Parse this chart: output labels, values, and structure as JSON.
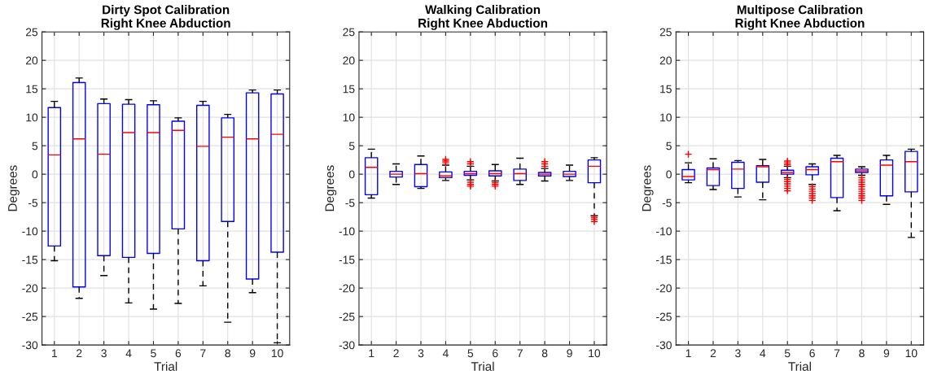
{
  "chart_data": [
    {
      "type": "box",
      "title": "Dirty Spot Calibration\nRight Knee Abduction",
      "xlabel": "Trial",
      "ylabel": "Degrees",
      "categories": [
        "1",
        "2",
        "3",
        "4",
        "5",
        "6",
        "7",
        "8",
        "9",
        "10"
      ],
      "ylim": [
        -30,
        25
      ],
      "yticks": [
        -30,
        -25,
        -20,
        -15,
        -10,
        -5,
        0,
        5,
        10,
        15,
        20,
        25
      ],
      "grid": true,
      "series": [
        {
          "color": "#0000ff",
          "boxes": [
            {
              "low": -15.2,
              "q1": -12.6,
              "median": 3.4,
              "q3": 11.7,
              "high": 12.8
            },
            {
              "low": -21.8,
              "q1": -19.8,
              "median": 6.2,
              "q3": 16.1,
              "high": 16.9
            },
            {
              "low": -17.8,
              "q1": -14.3,
              "median": 3.5,
              "q3": 12.4,
              "high": 13.2
            },
            {
              "low": -22.6,
              "q1": -14.6,
              "median": 7.3,
              "q3": 12.3,
              "high": 13.1
            },
            {
              "low": -23.7,
              "q1": -13.9,
              "median": 7.3,
              "q3": 12.2,
              "high": 12.9
            },
            {
              "low": -22.7,
              "q1": -9.6,
              "median": 7.7,
              "q3": 9.3,
              "high": 9.9
            },
            {
              "low": -19.6,
              "q1": -15.2,
              "median": 4.9,
              "q3": 12.1,
              "high": 12.8
            },
            {
              "low": -26.0,
              "q1": -8.3,
              "median": 6.5,
              "q3": 9.9,
              "high": 10.5
            },
            {
              "low": -20.8,
              "q1": -18.4,
              "median": 6.2,
              "q3": 14.3,
              "high": 14.8
            },
            {
              "low": -29.6,
              "q1": -13.7,
              "median": 7.0,
              "q3": 14.1,
              "high": 14.8
            }
          ]
        }
      ]
    },
    {
      "type": "box",
      "title": "Walking Calibration\nRight Knee Abduction",
      "xlabel": "Trial",
      "ylabel": "Degrees",
      "categories": [
        "1",
        "2",
        "3",
        "4",
        "5",
        "6",
        "7",
        "8",
        "9",
        "10"
      ],
      "ylim": [
        -30,
        25
      ],
      "yticks": [
        -30,
        -25,
        -20,
        -15,
        -10,
        -5,
        0,
        5,
        10,
        15,
        20,
        25
      ],
      "grid": true,
      "series": [
        {
          "color": "#0000ff",
          "boxes": [
            {
              "low": -4.2,
              "q1": -3.6,
              "median": 1.2,
              "q3": 2.9,
              "high": 4.4
            },
            {
              "low": -1.8,
              "q1": -0.5,
              "median": 0.0,
              "q3": 0.5,
              "high": 1.8
            },
            {
              "low": -2.5,
              "q1": -2.2,
              "median": 0.1,
              "q3": 1.7,
              "high": 3.2
            },
            {
              "low": -1.1,
              "q1": -0.6,
              "median": -0.3,
              "q3": 0.4,
              "high": 1.6,
              "outliers": [
                2.0,
                2.3,
                2.6
              ]
            },
            {
              "low": -1.0,
              "q1": -0.2,
              "median": 0.1,
              "q3": 0.5,
              "high": 1.4,
              "outliers": [
                1.8,
                2.2,
                -1.4,
                -1.8,
                -2.1
              ]
            },
            {
              "low": -1.2,
              "q1": -0.3,
              "median": 0.1,
              "q3": 0.6,
              "high": 1.7,
              "outliers": [
                -1.5,
                -1.8,
                -2.1
              ]
            },
            {
              "low": -1.8,
              "q1": -1.1,
              "median": 0.1,
              "q3": 0.9,
              "high": 2.8
            },
            {
              "low": -1.2,
              "q1": -0.3,
              "median": 0.0,
              "q3": 0.3,
              "high": 1.0,
              "outliers": [
                1.4,
                1.8,
                2.2
              ]
            },
            {
              "low": -1.1,
              "q1": -0.4,
              "median": 0.0,
              "q3": 0.5,
              "high": 1.6
            },
            {
              "low": -7.3,
              "q1": -1.5,
              "median": 1.4,
              "q3": 2.5,
              "high": 2.9,
              "outliers": [
                -7.6,
                -7.9,
                -8.3
              ]
            }
          ]
        }
      ]
    },
    {
      "type": "box",
      "title": "Multipose Calibration\nRight Knee Abduction",
      "xlabel": "Trial",
      "ylabel": "Degrees",
      "categories": [
        "1",
        "2",
        "3",
        "4",
        "5",
        "6",
        "7",
        "8",
        "9",
        "10"
      ],
      "ylim": [
        -30,
        25
      ],
      "yticks": [
        -30,
        -25,
        -20,
        -15,
        -10,
        -5,
        0,
        5,
        10,
        15,
        20,
        25
      ],
      "grid": true,
      "series": [
        {
          "color": "#0000ff",
          "boxes": [
            {
              "low": -1.5,
              "q1": -1.0,
              "median": -0.4,
              "q3": 0.8,
              "high": 2.0,
              "outliers": [
                3.5
              ]
            },
            {
              "low": -2.7,
              "q1": -2.0,
              "median": 0.8,
              "q3": 1.1,
              "high": 2.7
            },
            {
              "low": -4.0,
              "q1": -2.5,
              "median": 0.9,
              "q3": 2.1,
              "high": 2.4
            },
            {
              "low": -4.5,
              "q1": -1.4,
              "median": 1.3,
              "q3": 1.5,
              "high": 2.6
            },
            {
              "low": -0.6,
              "q1": 0.0,
              "median": 0.3,
              "q3": 0.7,
              "high": 1.4,
              "outliers": [
                1.7,
                2.0,
                2.3,
                -0.9,
                -1.3,
                -1.7,
                -2.1,
                -2.5,
                -2.9
              ]
            },
            {
              "low": -1.8,
              "q1": -0.1,
              "median": 0.8,
              "q3": 1.3,
              "high": 1.8,
              "outliers": [
                -2.2,
                -2.6,
                -3.0,
                -3.4,
                -3.8,
                -4.2,
                -4.6
              ]
            },
            {
              "low": -6.4,
              "q1": -4.1,
              "median": 2.2,
              "q3": 2.8,
              "high": 3.3
            },
            {
              "low": -0.2,
              "q1": 0.3,
              "median": 0.6,
              "q3": 0.9,
              "high": 1.3,
              "outliers": [
                -0.6,
                -1.0,
                -1.4,
                -1.8,
                -2.2,
                -2.6,
                -3.0,
                -3.4,
                -3.8,
                -4.2,
                -4.6
              ]
            },
            {
              "low": -5.3,
              "q1": -3.8,
              "median": 1.6,
              "q3": 2.5,
              "high": 3.3
            },
            {
              "low": -11.1,
              "q1": -3.1,
              "median": 2.2,
              "q3": 4.0,
              "high": 4.4
            }
          ]
        }
      ]
    }
  ]
}
